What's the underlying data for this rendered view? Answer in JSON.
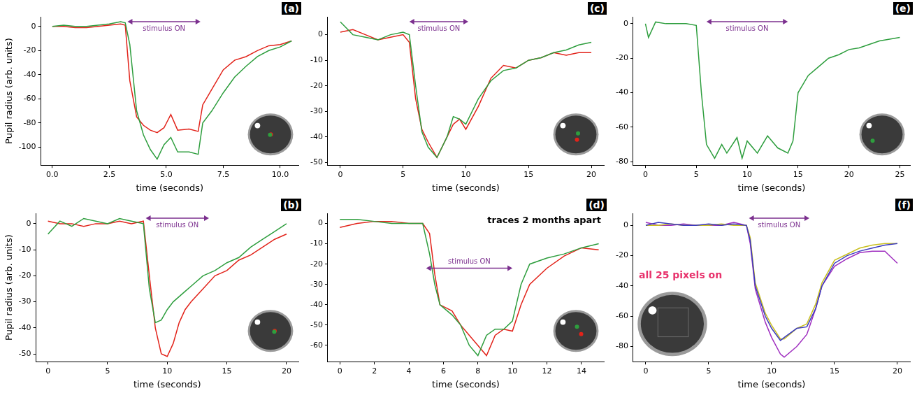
{
  "chart_data": [
    {
      "type": "line",
      "panel": "(a)",
      "xlabel": "time (seconds)",
      "ylabel": "Pupil radius (arb. units)",
      "grid": false,
      "x": [
        0,
        0.5,
        1,
        1.5,
        2,
        2.5,
        3,
        3.2,
        3.4,
        3.7,
        4,
        4.3,
        4.6,
        4.9,
        5.2,
        5.5,
        6,
        6.4,
        6.6,
        7,
        7.5,
        8,
        8.5,
        9,
        9.5,
        10,
        10.5
      ],
      "series": [
        {
          "color": "#2e9e3e",
          "values": [
            0,
            1,
            0,
            0,
            1,
            2,
            4,
            3,
            -15,
            -70,
            -90,
            -102,
            -110,
            -98,
            -92,
            -104,
            -104,
            -106,
            -80,
            -70,
            -55,
            -42,
            -33,
            -25,
            -20,
            -17,
            -12
          ]
        },
        {
          "color": "#e2231a",
          "values": [
            0,
            0,
            -1,
            -1,
            0,
            1,
            2,
            1,
            -45,
            -75,
            -82,
            -86,
            -88,
            -84,
            -73,
            -86,
            -85,
            -87,
            -65,
            -52,
            -36,
            -28,
            -25,
            -20,
            -16,
            -15,
            -12
          ]
        }
      ],
      "xlim": [
        -0.5,
        10.8
      ],
      "ylim": [
        -115,
        8
      ],
      "xticks": [
        {
          "value": 0,
          "label": "0.0"
        },
        2.5,
        {
          "value": 5,
          "label": "5.0"
        },
        7.5,
        {
          "value": 10,
          "label": "10.0"
        }
      ],
      "yticks": [
        -100,
        -80,
        -60,
        -40,
        -20,
        0
      ],
      "stimulus": {
        "start": 3.3,
        "end": 6.5,
        "label": "stimulus ON"
      }
    },
    {
      "type": "line",
      "panel": "(b)",
      "xlabel": "time (seconds)",
      "ylabel": "Pupil radius (arb. units)",
      "grid": false,
      "x": [
        0,
        1,
        2,
        3,
        4,
        5,
        6,
        7,
        8,
        8.5,
        9,
        9.5,
        10,
        10.5,
        11,
        11.5,
        12,
        13,
        14,
        15,
        16,
        17,
        18,
        19,
        20
      ],
      "series": [
        {
          "color": "#2e9e3e",
          "values": [
            -4,
            1,
            -1,
            2,
            1,
            0,
            2,
            1,
            0,
            -25,
            -38,
            -37,
            -33,
            -30,
            -28,
            -26,
            -24,
            -20,
            -18,
            -15,
            -13,
            -9,
            -6,
            -3,
            0
          ]
        },
        {
          "color": "#e2231a",
          "values": [
            1,
            0,
            0,
            -1,
            0,
            0,
            1,
            0,
            1,
            -20,
            -40,
            -50,
            -51,
            -46,
            -38,
            -33,
            -30,
            -25,
            -20,
            -18,
            -14,
            -12,
            -9,
            -6,
            -4
          ]
        }
      ],
      "xlim": [
        -1,
        21
      ],
      "ylim": [
        -53,
        4
      ],
      "xticks": [
        0,
        5,
        10,
        15,
        20
      ],
      "yticks": [
        -50,
        -40,
        -30,
        -20,
        -10,
        0
      ],
      "stimulus": {
        "start": 8.2,
        "end": 13.5,
        "label": "stimulus ON"
      }
    },
    {
      "type": "line",
      "panel": "(c)",
      "xlabel": "time (seconds)",
      "grid": false,
      "x": [
        0,
        1,
        2,
        3,
        4,
        5,
        5.5,
        6,
        6.5,
        7,
        7.7,
        8.5,
        9,
        9.5,
        10,
        11,
        12,
        13,
        14,
        15,
        16,
        17,
        18,
        19,
        20
      ],
      "series": [
        {
          "color": "#2e9e3e",
          "values": [
            5,
            0,
            -1,
            -2,
            0,
            1,
            0,
            -20,
            -38,
            -44,
            -48,
            -40,
            -32,
            -33,
            -35,
            -25,
            -18,
            -14,
            -13,
            -10,
            -9,
            -7,
            -6,
            -4,
            -3
          ]
        },
        {
          "color": "#e2231a",
          "values": [
            1,
            2,
            0,
            -2,
            -1,
            0,
            -3,
            -25,
            -37,
            -42,
            -48,
            -40,
            -35,
            -33,
            -37,
            -28,
            -17,
            -12,
            -13,
            -10,
            -9,
            -7,
            -8,
            -7,
            -7
          ]
        }
      ],
      "xlim": [
        -1,
        21
      ],
      "ylim": [
        -51,
        7
      ],
      "xticks": [
        0,
        5,
        10,
        15,
        20
      ],
      "yticks": [
        -50,
        -40,
        -30,
        -20,
        -10,
        0
      ],
      "stimulus": {
        "start": 5.5,
        "end": 10.2,
        "label": "stimulus ON"
      }
    },
    {
      "type": "line",
      "panel": "(d)",
      "xlabel": "time (seconds)",
      "grid": false,
      "annotation": {
        "text": "traces 2 months apart",
        "color": "#000000"
      },
      "x": [
        0,
        1,
        2,
        3,
        4,
        4.8,
        5.2,
        5.5,
        5.8,
        6.5,
        7,
        7.5,
        8,
        8.5,
        9,
        9.5,
        10,
        10.5,
        11,
        12,
        13,
        14,
        15
      ],
      "series": [
        {
          "color": "#2e9e3e",
          "values": [
            2,
            2,
            1,
            0,
            0,
            0,
            -15,
            -30,
            -40,
            -45,
            -50,
            -60,
            -65,
            -55,
            -52,
            -52,
            -48,
            -30,
            -20,
            -17,
            -15,
            -12,
            -10
          ]
        },
        {
          "color": "#e2231a",
          "values": [
            -2,
            0,
            1,
            1,
            0,
            0,
            -5,
            -25,
            -40,
            -43,
            -50,
            -55,
            -60,
            -65,
            -55,
            -52,
            -53,
            -40,
            -30,
            -22,
            -16,
            -12,
            -13
          ]
        }
      ],
      "xlim": [
        -0.7,
        15.3
      ],
      "ylim": [
        -68,
        5
      ],
      "xticks": [
        0,
        2,
        4,
        6,
        8,
        10,
        12,
        14
      ],
      "yticks": [
        -60,
        -50,
        -40,
        -30,
        -20,
        -10,
        0
      ],
      "stimulus": {
        "start": 5,
        "end": 10,
        "label": "stimulus ON"
      }
    },
    {
      "type": "line",
      "panel": "(e)",
      "xlabel": "time (seconds)",
      "grid": false,
      "x": [
        0,
        0.3,
        1,
        2,
        3,
        4,
        5,
        5.5,
        6,
        6.8,
        7.5,
        8,
        9,
        9.5,
        10,
        11,
        12,
        13,
        14,
        14.5,
        15,
        16,
        17,
        18,
        19,
        20,
        21,
        22,
        23,
        24,
        25
      ],
      "series": [
        {
          "color": "#2e9e3e",
          "values": [
            0,
            -8,
            1,
            0,
            0,
            0,
            -1,
            -40,
            -70,
            -78,
            -70,
            -75,
            -66,
            -78,
            -68,
            -75,
            -65,
            -72,
            -75,
            -68,
            -40,
            -30,
            -25,
            -20,
            -18,
            -15,
            -14,
            -12,
            -10,
            -9,
            -8
          ]
        }
      ],
      "xlim": [
        -1.2,
        26
      ],
      "ylim": [
        -82,
        4
      ],
      "xticks": [
        0,
        5,
        10,
        15,
        20,
        25
      ],
      "yticks": [
        -80,
        -60,
        -40,
        -20,
        0
      ],
      "stimulus": {
        "start": 6,
        "end": 14,
        "label": "stimulus ON"
      }
    },
    {
      "type": "line",
      "panel": "(f)",
      "xlabel": "time (seconds)",
      "grid": false,
      "annotation": {
        "text": "all 25 pixels on",
        "color": "#e8336d"
      },
      "x": [
        0,
        1,
        2,
        3,
        4,
        5,
        6,
        7,
        8,
        8.3,
        8.7,
        9.5,
        10,
        10.7,
        11,
        12,
        12.8,
        13.5,
        14,
        15,
        16,
        17,
        18,
        19,
        20
      ],
      "series": [
        {
          "color": "#3b3bbf",
          "values": [
            0,
            2,
            1,
            0,
            0,
            1,
            0,
            1,
            0,
            -10,
            -40,
            -60,
            -68,
            -76,
            -74,
            -68,
            -67,
            -55,
            -40,
            -25,
            -20,
            -17,
            -15,
            -13,
            -12
          ]
        },
        {
          "color": "#c9c020",
          "values": [
            0,
            0,
            1,
            0,
            0,
            0,
            1,
            0,
            0,
            -8,
            -38,
            -58,
            -66,
            -75,
            -75,
            -68,
            -65,
            -52,
            -38,
            -23,
            -19,
            -15,
            -13,
            -12,
            -12
          ]
        },
        {
          "color": "#a030c0",
          "values": [
            2,
            0,
            0,
            1,
            0,
            0,
            0,
            2,
            0,
            -12,
            -42,
            -64,
            -74,
            -85,
            -87,
            -80,
            -72,
            -55,
            -40,
            -27,
            -22,
            -18,
            -17,
            -17,
            -25
          ]
        }
      ],
      "xlim": [
        -1,
        21
      ],
      "ylim": [
        -90,
        8
      ],
      "xticks": [
        0,
        5,
        10,
        15,
        20
      ],
      "yticks": [
        -80,
        -60,
        -40,
        -20,
        0
      ],
      "stimulus": {
        "start": 8.2,
        "end": 13,
        "label": "stimulus ON"
      }
    }
  ]
}
